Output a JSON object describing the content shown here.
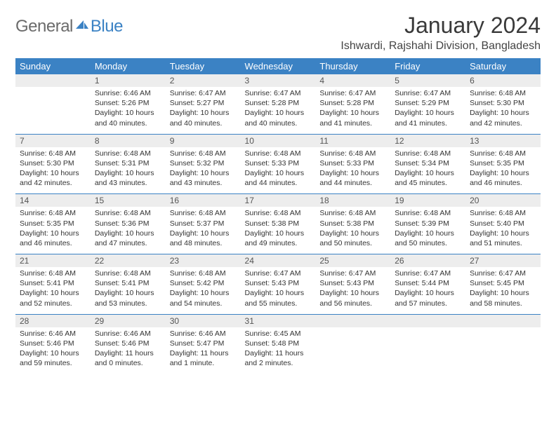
{
  "brand": {
    "part1": "General",
    "part2": "Blue"
  },
  "title": "January 2024",
  "location": "Ishwardi, Rajshahi Division, Bangladesh",
  "colors": {
    "accent": "#3b82c4",
    "header_bg": "#3b82c4",
    "header_text": "#ffffff",
    "daynum_bg": "#ededed",
    "daynum_text": "#555555",
    "body_text": "#333333",
    "logo_gray": "#6b6b6b"
  },
  "typography": {
    "title_fontsize": 32,
    "location_fontsize": 16,
    "header_fontsize": 13,
    "daynum_fontsize": 12,
    "cell_fontsize": 10.5
  },
  "day_headers": [
    "Sunday",
    "Monday",
    "Tuesday",
    "Wednesday",
    "Thursday",
    "Friday",
    "Saturday"
  ],
  "weeks": [
    [
      {
        "n": "",
        "sr": "",
        "ss": "",
        "dl": ""
      },
      {
        "n": "1",
        "sr": "Sunrise: 6:46 AM",
        "ss": "Sunset: 5:26 PM",
        "dl": "Daylight: 10 hours and 40 minutes."
      },
      {
        "n": "2",
        "sr": "Sunrise: 6:47 AM",
        "ss": "Sunset: 5:27 PM",
        "dl": "Daylight: 10 hours and 40 minutes."
      },
      {
        "n": "3",
        "sr": "Sunrise: 6:47 AM",
        "ss": "Sunset: 5:28 PM",
        "dl": "Daylight: 10 hours and 40 minutes."
      },
      {
        "n": "4",
        "sr": "Sunrise: 6:47 AM",
        "ss": "Sunset: 5:28 PM",
        "dl": "Daylight: 10 hours and 41 minutes."
      },
      {
        "n": "5",
        "sr": "Sunrise: 6:47 AM",
        "ss": "Sunset: 5:29 PM",
        "dl": "Daylight: 10 hours and 41 minutes."
      },
      {
        "n": "6",
        "sr": "Sunrise: 6:48 AM",
        "ss": "Sunset: 5:30 PM",
        "dl": "Daylight: 10 hours and 42 minutes."
      }
    ],
    [
      {
        "n": "7",
        "sr": "Sunrise: 6:48 AM",
        "ss": "Sunset: 5:30 PM",
        "dl": "Daylight: 10 hours and 42 minutes."
      },
      {
        "n": "8",
        "sr": "Sunrise: 6:48 AM",
        "ss": "Sunset: 5:31 PM",
        "dl": "Daylight: 10 hours and 43 minutes."
      },
      {
        "n": "9",
        "sr": "Sunrise: 6:48 AM",
        "ss": "Sunset: 5:32 PM",
        "dl": "Daylight: 10 hours and 43 minutes."
      },
      {
        "n": "10",
        "sr": "Sunrise: 6:48 AM",
        "ss": "Sunset: 5:33 PM",
        "dl": "Daylight: 10 hours and 44 minutes."
      },
      {
        "n": "11",
        "sr": "Sunrise: 6:48 AM",
        "ss": "Sunset: 5:33 PM",
        "dl": "Daylight: 10 hours and 44 minutes."
      },
      {
        "n": "12",
        "sr": "Sunrise: 6:48 AM",
        "ss": "Sunset: 5:34 PM",
        "dl": "Daylight: 10 hours and 45 minutes."
      },
      {
        "n": "13",
        "sr": "Sunrise: 6:48 AM",
        "ss": "Sunset: 5:35 PM",
        "dl": "Daylight: 10 hours and 46 minutes."
      }
    ],
    [
      {
        "n": "14",
        "sr": "Sunrise: 6:48 AM",
        "ss": "Sunset: 5:35 PM",
        "dl": "Daylight: 10 hours and 46 minutes."
      },
      {
        "n": "15",
        "sr": "Sunrise: 6:48 AM",
        "ss": "Sunset: 5:36 PM",
        "dl": "Daylight: 10 hours and 47 minutes."
      },
      {
        "n": "16",
        "sr": "Sunrise: 6:48 AM",
        "ss": "Sunset: 5:37 PM",
        "dl": "Daylight: 10 hours and 48 minutes."
      },
      {
        "n": "17",
        "sr": "Sunrise: 6:48 AM",
        "ss": "Sunset: 5:38 PM",
        "dl": "Daylight: 10 hours and 49 minutes."
      },
      {
        "n": "18",
        "sr": "Sunrise: 6:48 AM",
        "ss": "Sunset: 5:38 PM",
        "dl": "Daylight: 10 hours and 50 minutes."
      },
      {
        "n": "19",
        "sr": "Sunrise: 6:48 AM",
        "ss": "Sunset: 5:39 PM",
        "dl": "Daylight: 10 hours and 50 minutes."
      },
      {
        "n": "20",
        "sr": "Sunrise: 6:48 AM",
        "ss": "Sunset: 5:40 PM",
        "dl": "Daylight: 10 hours and 51 minutes."
      }
    ],
    [
      {
        "n": "21",
        "sr": "Sunrise: 6:48 AM",
        "ss": "Sunset: 5:41 PM",
        "dl": "Daylight: 10 hours and 52 minutes."
      },
      {
        "n": "22",
        "sr": "Sunrise: 6:48 AM",
        "ss": "Sunset: 5:41 PM",
        "dl": "Daylight: 10 hours and 53 minutes."
      },
      {
        "n": "23",
        "sr": "Sunrise: 6:48 AM",
        "ss": "Sunset: 5:42 PM",
        "dl": "Daylight: 10 hours and 54 minutes."
      },
      {
        "n": "24",
        "sr": "Sunrise: 6:47 AM",
        "ss": "Sunset: 5:43 PM",
        "dl": "Daylight: 10 hours and 55 minutes."
      },
      {
        "n": "25",
        "sr": "Sunrise: 6:47 AM",
        "ss": "Sunset: 5:43 PM",
        "dl": "Daylight: 10 hours and 56 minutes."
      },
      {
        "n": "26",
        "sr": "Sunrise: 6:47 AM",
        "ss": "Sunset: 5:44 PM",
        "dl": "Daylight: 10 hours and 57 minutes."
      },
      {
        "n": "27",
        "sr": "Sunrise: 6:47 AM",
        "ss": "Sunset: 5:45 PM",
        "dl": "Daylight: 10 hours and 58 minutes."
      }
    ],
    [
      {
        "n": "28",
        "sr": "Sunrise: 6:46 AM",
        "ss": "Sunset: 5:46 PM",
        "dl": "Daylight: 10 hours and 59 minutes."
      },
      {
        "n": "29",
        "sr": "Sunrise: 6:46 AM",
        "ss": "Sunset: 5:46 PM",
        "dl": "Daylight: 11 hours and 0 minutes."
      },
      {
        "n": "30",
        "sr": "Sunrise: 6:46 AM",
        "ss": "Sunset: 5:47 PM",
        "dl": "Daylight: 11 hours and 1 minute."
      },
      {
        "n": "31",
        "sr": "Sunrise: 6:45 AM",
        "ss": "Sunset: 5:48 PM",
        "dl": "Daylight: 11 hours and 2 minutes."
      },
      {
        "n": "",
        "sr": "",
        "ss": "",
        "dl": ""
      },
      {
        "n": "",
        "sr": "",
        "ss": "",
        "dl": ""
      },
      {
        "n": "",
        "sr": "",
        "ss": "",
        "dl": ""
      }
    ]
  ]
}
